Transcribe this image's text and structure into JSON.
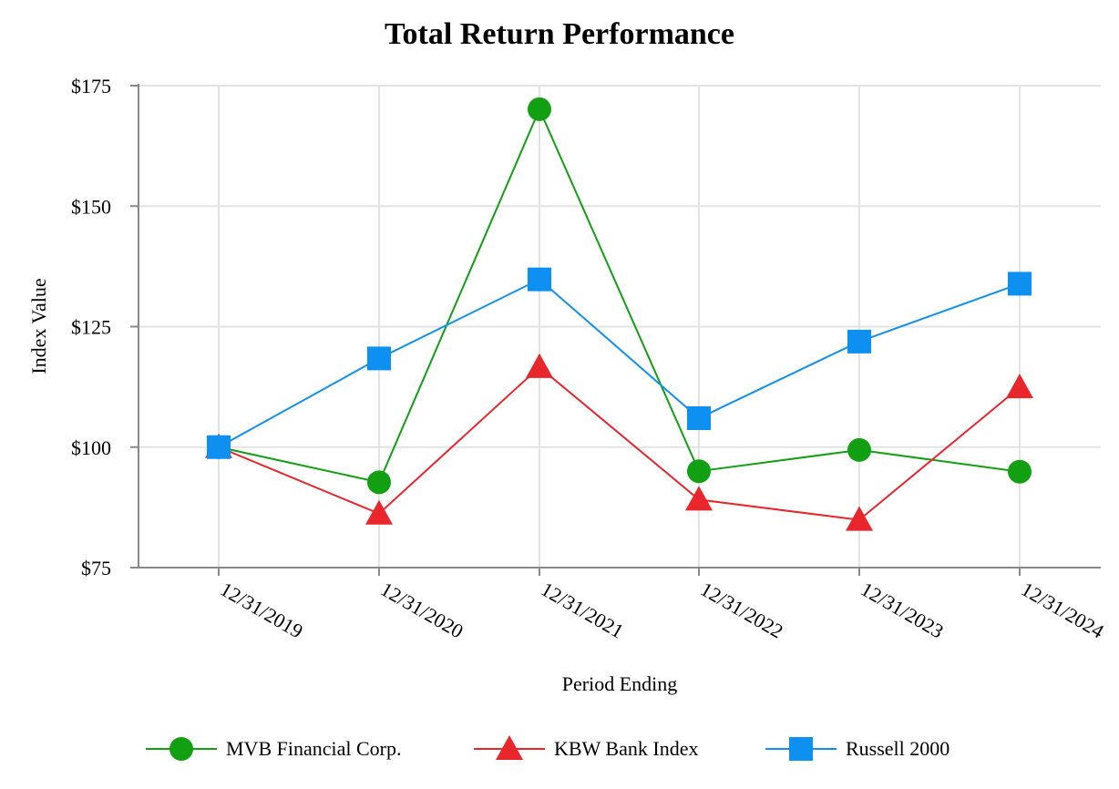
{
  "chart_data": {
    "type": "line",
    "title": "Total Return Performance",
    "xlabel": "Period Ending",
    "ylabel": "Index Value",
    "categories": [
      "12/31/2019",
      "12/31/2020",
      "12/31/2021",
      "12/31/2022",
      "12/31/2023",
      "12/31/2024"
    ],
    "ylim": [
      75,
      175
    ],
    "yticks": [
      75,
      100,
      125,
      150,
      175
    ],
    "ytick_labels": [
      "$75",
      "$100",
      "$125",
      "$150",
      "$175"
    ],
    "grid": true,
    "legend_position": "bottom",
    "series": [
      {
        "name": "MVB Financial Corp.",
        "color": "#12a012",
        "marker": "circle",
        "values": [
          100,
          92.7,
          170.1,
          95.0,
          99.4,
          94.9
        ]
      },
      {
        "name": "KBW Bank Index",
        "color": "#e8262c",
        "marker": "triangle",
        "values": [
          100,
          86.2,
          116.6,
          89.1,
          84.9,
          112.4
        ]
      },
      {
        "name": "Russell 2000",
        "color": "#0e90f0",
        "marker": "square",
        "values": [
          100,
          118.4,
          134.8,
          106.0,
          121.9,
          133.9
        ]
      }
    ]
  }
}
